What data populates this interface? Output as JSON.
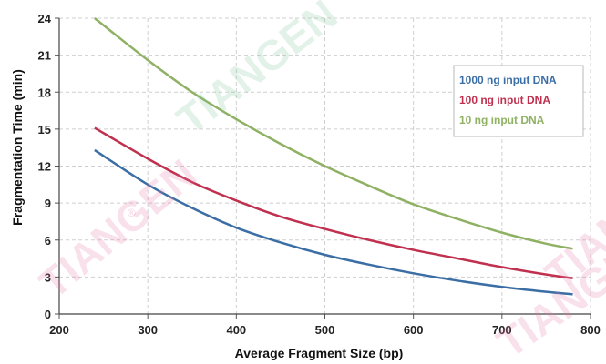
{
  "watermark": {
    "text": "TIANGEN",
    "registered": "®"
  },
  "chart_data": {
    "type": "line",
    "xlabel": "Average Fragment Size (bp)",
    "ylabel": "Fragmentation Time (min)",
    "xlim": [
      200,
      800
    ],
    "ylim": [
      0,
      24
    ],
    "xticks": [
      200,
      300,
      400,
      500,
      600,
      700,
      800
    ],
    "yticks": [
      0,
      3,
      6,
      9,
      12,
      15,
      18,
      21,
      24
    ],
    "grid": true,
    "legend_position": "right",
    "series": [
      {
        "name": "1000 ng input DNA",
        "color": "#3a6ea5",
        "x": [
          240,
          300,
          350,
          400,
          450,
          500,
          550,
          600,
          650,
          700,
          750,
          780
        ],
        "y": [
          13.3,
          10.5,
          8.6,
          7.0,
          5.8,
          4.8,
          4.0,
          3.3,
          2.7,
          2.2,
          1.8,
          1.6
        ]
      },
      {
        "name": "100 ng input DNA",
        "color": "#c0304f",
        "x": [
          240,
          300,
          350,
          400,
          450,
          500,
          550,
          600,
          650,
          700,
          750,
          780
        ],
        "y": [
          15.1,
          12.6,
          10.7,
          9.2,
          7.9,
          6.9,
          6.0,
          5.2,
          4.5,
          3.8,
          3.2,
          2.9
        ]
      },
      {
        "name": "10 ng input DNA",
        "color": "#8fb163",
        "x": [
          240,
          300,
          350,
          400,
          450,
          500,
          550,
          600,
          650,
          700,
          750,
          780
        ],
        "y": [
          24.0,
          20.6,
          18.0,
          15.8,
          13.8,
          12.0,
          10.4,
          8.9,
          7.7,
          6.6,
          5.7,
          5.3
        ]
      }
    ]
  }
}
